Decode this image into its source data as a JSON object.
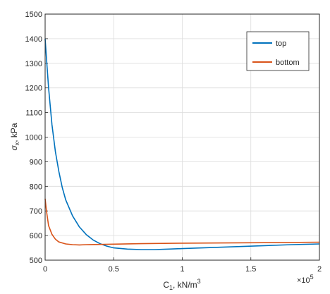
{
  "chart_data": {
    "type": "line",
    "xlabel_main": "C",
    "xlabel_sub": "1",
    "xlabel_rest": ", kN/m",
    "xlabel_sup": "3",
    "ylabel_sigma": "σ",
    "ylabel_sub": "x",
    "ylabel_rest": ", kPa",
    "x_exponent_base": "×10",
    "x_exponent_power": "5",
    "xlim": [
      0,
      200000
    ],
    "ylim": [
      500,
      1500
    ],
    "x_ticks": [
      0,
      50000,
      100000,
      150000,
      200000
    ],
    "x_tick_labels": [
      "0",
      "0.5",
      "1",
      "1.5",
      "2"
    ],
    "y_ticks": [
      500,
      600,
      700,
      800,
      900,
      1000,
      1100,
      1200,
      1300,
      1400,
      1500
    ],
    "y_tick_labels": [
      "500",
      "600",
      "700",
      "800",
      "900",
      "1000",
      "1100",
      "1200",
      "1300",
      "1400",
      "1500"
    ],
    "grid": true,
    "legend_position": "top-right",
    "series": [
      {
        "name": "top",
        "color": "#0072bd",
        "points": [
          [
            0,
            1400
          ],
          [
            1000,
            1320
          ],
          [
            2500,
            1200
          ],
          [
            5000,
            1050
          ],
          [
            7500,
            940
          ],
          [
            10000,
            860
          ],
          [
            12500,
            795
          ],
          [
            15000,
            745
          ],
          [
            20000,
            680
          ],
          [
            25000,
            635
          ],
          [
            30000,
            604
          ],
          [
            35000,
            582
          ],
          [
            40000,
            567
          ],
          [
            45000,
            557
          ],
          [
            50000,
            550
          ],
          [
            60000,
            545
          ],
          [
            70000,
            543
          ],
          [
            80000,
            543
          ],
          [
            90000,
            545
          ],
          [
            100000,
            547
          ],
          [
            120000,
            551
          ],
          [
            140000,
            555
          ],
          [
            160000,
            559
          ],
          [
            180000,
            563
          ],
          [
            200000,
            566
          ]
        ]
      },
      {
        "name": "bottom",
        "color": "#d95319",
        "points": [
          [
            0,
            750
          ],
          [
            1000,
            700
          ],
          [
            2500,
            640
          ],
          [
            5000,
            605
          ],
          [
            7500,
            585
          ],
          [
            10000,
            574
          ],
          [
            15000,
            566
          ],
          [
            20000,
            563
          ],
          [
            25000,
            562
          ],
          [
            30000,
            563
          ],
          [
            40000,
            564
          ],
          [
            50000,
            565
          ],
          [
            70000,
            567
          ],
          [
            100000,
            569
          ],
          [
            130000,
            570
          ],
          [
            160000,
            571
          ],
          [
            200000,
            573
          ]
        ]
      }
    ]
  }
}
